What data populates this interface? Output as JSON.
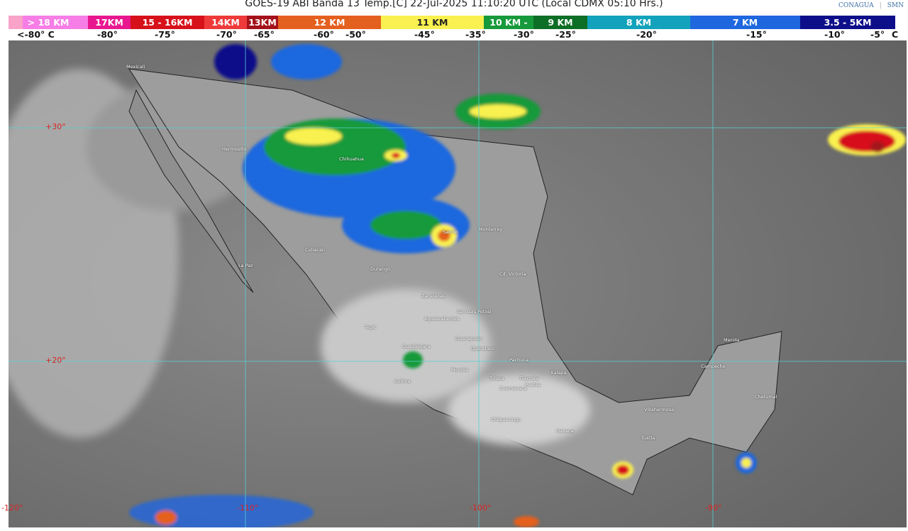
{
  "title": "GOES-19 ABI Banda 13 Temp.[C] 22-Jul-2025 11:10:20 UTC (Local CDMX  05:10 Hrs.)",
  "logos": [
    "CONAGUA",
    "SMN"
  ],
  "legend": {
    "segments": [
      {
        "label": "> 18 KM",
        "color": "#f77ee6"
      },
      {
        "label": "17KM",
        "color": "#e8178f"
      },
      {
        "label": "15 - 16KM",
        "color": "#d7111a"
      },
      {
        "label": "14KM",
        "color": "#ee3a3a"
      },
      {
        "label": "13KM",
        "color": "#a3121a"
      },
      {
        "label": "12 KM",
        "color": "#e4601f"
      },
      {
        "label": "11 KM",
        "color": "#f9f150"
      },
      {
        "label": "10 KM -",
        "color": "#179a3b"
      },
      {
        "label": "9 KM",
        "color": "#0d6e25"
      },
      {
        "label": "8 KM",
        "color": "#13a2bc"
      },
      {
        "label": "7 KM",
        "color": "#1e67de"
      },
      {
        "label": "3.5 - 5KM",
        "color": "#0d0e8a"
      }
    ],
    "temps": [
      "<-80° C",
      "-80°",
      "-75°",
      "-70°",
      "-65°",
      "-60°",
      "-50°",
      "-45°",
      "-35°",
      "-30°",
      "-25°",
      "-20°",
      "-15°",
      "-10°",
      "-5°",
      "C"
    ]
  },
  "grid": {
    "latitudes": [
      "+30°",
      "+20°"
    ],
    "longitudes": [
      "-120°",
      "-110°",
      "-100°",
      "-90°"
    ]
  },
  "cities": [
    "Mexicali",
    "Hermosillo",
    "Chihuahua",
    "Culiacan",
    "La Paz",
    "Durango",
    "Saltillo",
    "Monterrey",
    "Cd. Victoria",
    "Zacatecas",
    "San Luis Potosi",
    "Aguascalientes",
    "Tepic",
    "Guanajuato",
    "Guadalajara",
    "Queretaro",
    "Pachuca",
    "Morelia",
    "Toluca",
    "Tlaxcala",
    "Puebla",
    "Xalapa",
    "Cuernavaca",
    "Colima",
    "Chilpancingo",
    "Oaxaca",
    "Villahermosa",
    "Tuxtla",
    "Campeche",
    "Merida",
    "Chetumal"
  ]
}
